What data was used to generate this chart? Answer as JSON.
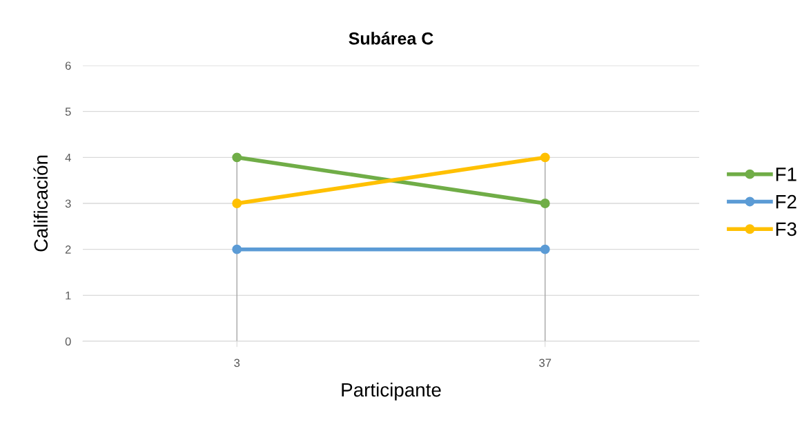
{
  "chart_data": {
    "type": "line",
    "title": "Subárea C",
    "xlabel": "Participante",
    "ylabel": "Calificación",
    "categories": [
      "3",
      "37"
    ],
    "series": [
      {
        "name": "F1",
        "color": "#70ad47",
        "values": [
          4,
          3
        ]
      },
      {
        "name": "F2",
        "color": "#5b9bd5",
        "values": [
          2,
          2
        ]
      },
      {
        "name": "F3",
        "color": "#ffc000",
        "values": [
          3,
          4
        ]
      }
    ],
    "ylim": [
      0,
      6
    ],
    "yticks": [
      0,
      1,
      2,
      3,
      4,
      5,
      6
    ],
    "grid": "y",
    "legend": "right",
    "marker": "circle",
    "line_style": "solid",
    "ref_lines": [
      {
        "axis": "x",
        "value": "3",
        "color": "#a6a6a6"
      },
      {
        "axis": "x",
        "value": "37",
        "color": "#a6a6a6"
      }
    ]
  }
}
